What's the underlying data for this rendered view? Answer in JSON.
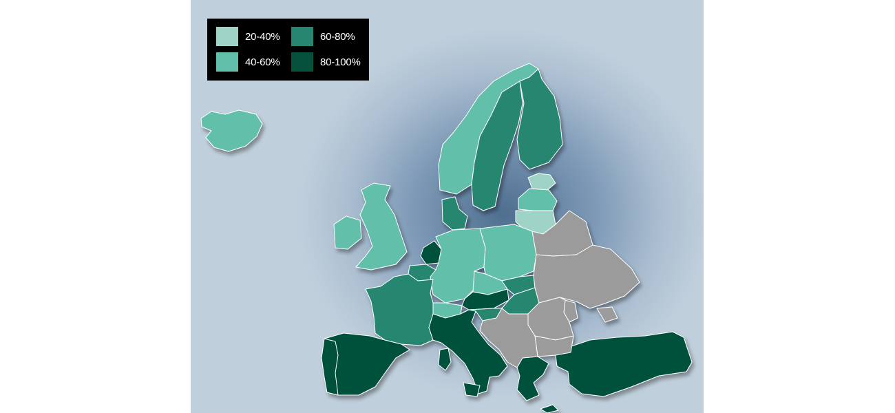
{
  "legend": {
    "items": [
      {
        "label": "20-40%",
        "color": "#9fd3c5"
      },
      {
        "label": "40-60%",
        "color": "#62bfa9"
      },
      {
        "label": "60-80%",
        "color": "#268670"
      },
      {
        "label": "80-100%",
        "color": "#06513b"
      }
    ]
  },
  "colors": {
    "no_data": "#9b9b9b",
    "sea_center": "#4f6f90",
    "sea_edge": "#c0cfdc"
  },
  "regions": {
    "iceland": "40-60%",
    "norway": "40-60%",
    "sweden": "60-80%",
    "finland": "60-80%",
    "estonia": "20-40%",
    "latvia": "40-60%",
    "lithuania": "20-40%",
    "ireland": "40-60%",
    "united_kingdom": "40-60%",
    "denmark": "60-80%",
    "netherlands": "80-100%",
    "belgium": "60-80%",
    "germany": "40-60%",
    "poland": "40-60%",
    "czechia": "40-60%",
    "slovakia": "60-80%",
    "austria": "80-100%",
    "hungary": "60-80%",
    "switzerland": "40-60%",
    "france": "60-80%",
    "italy": "80-100%",
    "slovenia": "60-80%",
    "spain": "80-100%",
    "portugal": "80-100%",
    "greece": "80-100%",
    "turkey": "80-100%",
    "cyprus": "80-100%",
    "belarus": "no data",
    "ukraine": "no data",
    "moldova": "no data",
    "romania": "no data",
    "bulgaria": "no data",
    "western_balkans": "no data"
  }
}
